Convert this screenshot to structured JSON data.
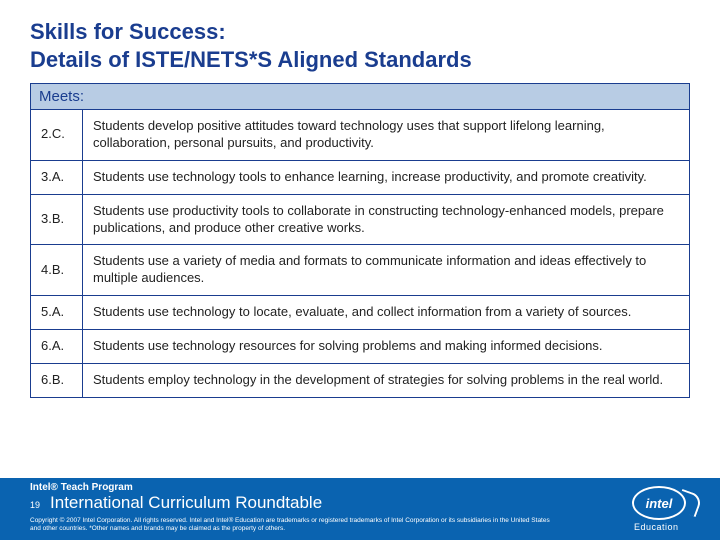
{
  "title_line1": "Skills for Success:",
  "title_line2": "Details of ISTE/NETS*S Aligned Standards",
  "meets_label": "Meets:",
  "standards": [
    {
      "code": "2.C.",
      "desc": "Students develop positive attitudes toward technology uses that support lifelong learning, collaboration, personal pursuits, and productivity."
    },
    {
      "code": "3.A.",
      "desc": "Students use technology tools to enhance learning, increase productivity, and promote creativity."
    },
    {
      "code": "3.B.",
      "desc": "Students use productivity tools to collaborate in constructing technology-enhanced models, prepare publications, and produce other creative works."
    },
    {
      "code": "4.B.",
      "desc": "Students use a variety of media and formats to communicate information and ideas effectively to multiple audiences."
    },
    {
      "code": "5.A.",
      "desc": "Students use technology to locate, evaluate, and collect information from a variety of sources."
    },
    {
      "code": "6.A.",
      "desc": "Students use technology resources for solving problems and making informed decisions."
    },
    {
      "code": "6.B.",
      "desc": "Students employ technology in the development of strategies for solving problems in the real world."
    }
  ],
  "footer": {
    "program": "Intel® Teach Program",
    "page": "19",
    "subtitle": "International Curriculum Roundtable",
    "copyright": "Copyright © 2007 Intel Corporation. All rights reserved. Intel and Intel® Education are trademarks or registered trademarks of Intel Corporation or its subsidiaries in the United States and other countries. *Other names and brands may be claimed as the property of others."
  },
  "logo": {
    "text": "intel",
    "sub": "Education"
  },
  "colors": {
    "title": "#1a3d8f",
    "header_bg": "#b8cce4",
    "border": "#1a3d8f",
    "footer_bg": "#0a63b0",
    "text": "#222222",
    "white": "#ffffff"
  }
}
